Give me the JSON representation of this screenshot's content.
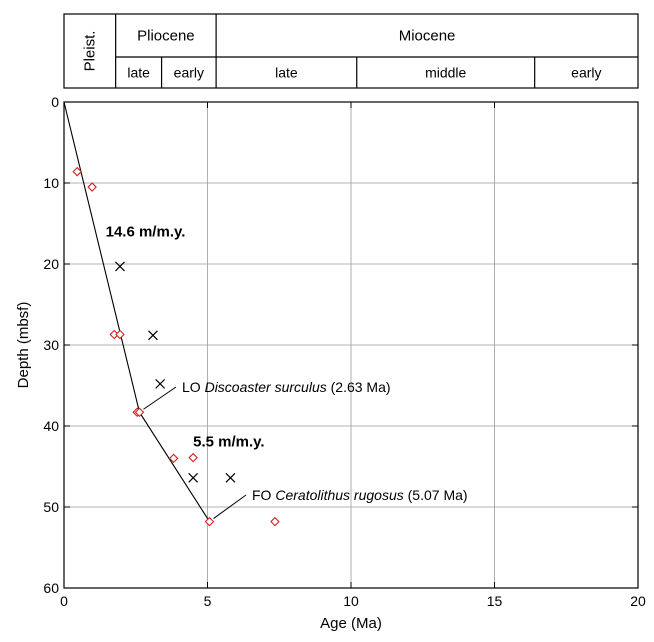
{
  "stratigraphy": {
    "epochs": [
      {
        "name": "Pleist.",
        "start": 0,
        "end": 1.8
      },
      {
        "name": "Pliocene",
        "start": 1.8,
        "end": 5.3
      },
      {
        "name": "Miocene",
        "start": 5.3,
        "end": 20
      }
    ],
    "subdivisions": [
      {
        "name": "late",
        "start": 1.8,
        "end": 3.4
      },
      {
        "name": "early",
        "start": 3.4,
        "end": 5.3
      },
      {
        "name": "late",
        "start": 5.3,
        "end": 10.2
      },
      {
        "name": "middle",
        "start": 10.2,
        "end": 16.4
      },
      {
        "name": "early",
        "start": 16.4,
        "end": 20
      }
    ]
  },
  "chart_data": {
    "type": "scatter",
    "xlabel": "Age (Ma)",
    "ylabel": "Depth (mbsf)",
    "xlim": [
      0,
      20
    ],
    "ylim": [
      60,
      0
    ],
    "xticks": [
      0,
      5,
      10,
      15,
      20
    ],
    "yticks": [
      0,
      10,
      20,
      30,
      40,
      50,
      60
    ],
    "grid": true,
    "series": [
      {
        "marker": "diamond",
        "color": "#d42020",
        "points": [
          {
            "x": 0.46,
            "y": 8.6
          },
          {
            "x": 0.98,
            "y": 10.5
          },
          {
            "x": 1.75,
            "y": 28.7
          },
          {
            "x": 1.95,
            "y": 28.7
          },
          {
            "x": 2.55,
            "y": 38.3
          },
          {
            "x": 2.63,
            "y": 38.3
          },
          {
            "x": 3.82,
            "y": 44.0
          },
          {
            "x": 4.5,
            "y": 43.9
          },
          {
            "x": 5.07,
            "y": 51.8
          },
          {
            "x": 7.35,
            "y": 51.8
          }
        ]
      },
      {
        "marker": "cross",
        "color": "#000000",
        "points": [
          {
            "x": 1.95,
            "y": 20.3
          },
          {
            "x": 3.1,
            "y": 28.8
          },
          {
            "x": 3.35,
            "y": 34.8
          },
          {
            "x": 4.5,
            "y": 46.4
          },
          {
            "x": 5.8,
            "y": 46.4
          }
        ]
      }
    ],
    "age_depth_line": {
      "color": "#000000",
      "points": [
        {
          "x": 0,
          "y": 0
        },
        {
          "x": 2.63,
          "y": 38.3
        },
        {
          "x": 5.07,
          "y": 51.8
        }
      ]
    },
    "annotations": [
      {
        "label": "LO ",
        "italic": "Discoaster surculus",
        "suffix": " (2.63 Ma)",
        "x": 2.63,
        "y": 38.3
      },
      {
        "label": "FO ",
        "italic": "Ceratolithus rugosus",
        "suffix": " (5.07 Ma)",
        "x": 5.07,
        "y": 51.8
      }
    ],
    "rates": [
      {
        "text": "14.6 m/m.y.",
        "x": 1.45,
        "y": 16.6
      },
      {
        "text": "5.5 m/m.y.",
        "x": 4.5,
        "y": 42.5
      }
    ]
  }
}
